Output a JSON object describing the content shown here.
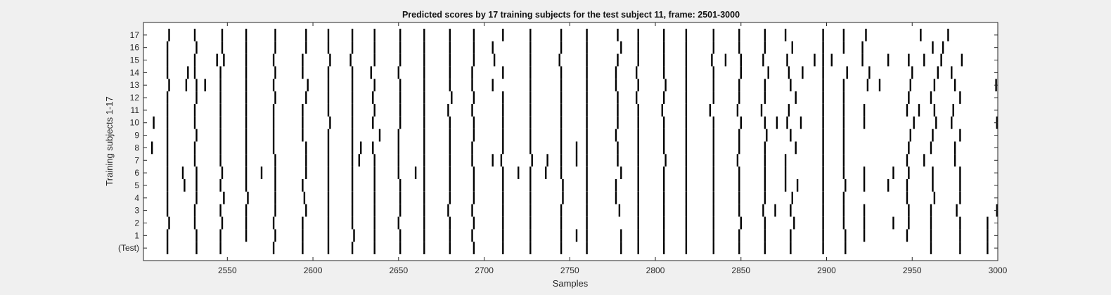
{
  "chart_data": {
    "type": "raster",
    "title": "Predicted scores by 17 training subjects for the test subject 11, frame: 2501-3000",
    "xlabel": "Samples",
    "ylabel": "Training subjects 1-17",
    "xlim": [
      2501,
      3000
    ],
    "x_ticks": [
      2550,
      2600,
      2650,
      2700,
      2750,
      2800,
      2850,
      2900,
      2950,
      3000
    ],
    "y_tick_labels": [
      "(Test)",
      "1",
      "2",
      "3",
      "4",
      "5",
      "6",
      "7",
      "8",
      "9",
      "10",
      "11",
      "12",
      "13",
      "14",
      "15",
      "16",
      "17"
    ],
    "grid": false,
    "rows": [
      {
        "label": "(Test)",
        "events": [
          2515,
          2532,
          2546,
          2577,
          2594,
          2609,
          2623,
          2636,
          2651,
          2665,
          2680,
          2694,
          2711,
          2727,
          2745,
          2760,
          2780,
          2790,
          2805,
          2818,
          2834,
          2849,
          2864,
          2879,
          2898,
          2911,
          2961,
          2978,
          2994
        ]
      },
      {
        "label": "1",
        "events": [
          2515,
          2532,
          2546,
          2561,
          2578,
          2594,
          2609,
          2624,
          2636,
          2651,
          2665,
          2680,
          2693,
          2711,
          2727,
          2745,
          2754,
          2760,
          2780,
          2790,
          2805,
          2818,
          2834,
          2849,
          2864,
          2879,
          2898,
          2911,
          2922,
          2947,
          2961,
          2978,
          2994
        ]
      },
      {
        "label": "2",
        "events": [
          2516,
          2531,
          2547,
          2561,
          2577,
          2594,
          2609,
          2623,
          2636,
          2650,
          2665,
          2680,
          2694,
          2711,
          2727,
          2745,
          2760,
          2790,
          2805,
          2818,
          2834,
          2850,
          2864,
          2881,
          2898,
          2910,
          2922,
          2939,
          2948,
          2961,
          2978,
          2994
        ]
      },
      {
        "label": "3",
        "events": [
          2515,
          2531,
          2546,
          2561,
          2578,
          2596,
          2609,
          2623,
          2636,
          2651,
          2665,
          2679,
          2693,
          2711,
          2727,
          2745,
          2760,
          2779,
          2790,
          2805,
          2818,
          2834,
          2849,
          2863,
          2870,
          2879,
          2898,
          2910,
          2922,
          2948,
          2961,
          2976,
          3000
        ]
      },
      {
        "label": "4",
        "events": [
          2515,
          2532,
          2548,
          2562,
          2578,
          2595,
          2609,
          2623,
          2636,
          2651,
          2665,
          2680,
          2694,
          2711,
          2727,
          2746,
          2760,
          2777,
          2790,
          2805,
          2818,
          2834,
          2849,
          2864,
          2880,
          2898,
          2910,
          2947,
          2963,
          2978
        ]
      },
      {
        "label": "5",
        "events": [
          2515,
          2525,
          2532,
          2546,
          2561,
          2578,
          2594,
          2609,
          2623,
          2636,
          2651,
          2665,
          2680,
          2694,
          2711,
          2727,
          2746,
          2760,
          2777,
          2790,
          2805,
          2818,
          2834,
          2849,
          2864,
          2876,
          2883,
          2898,
          2911,
          2922,
          2936,
          2947,
          2962,
          2978
        ]
      },
      {
        "label": "6",
        "events": [
          2515,
          2524,
          2532,
          2547,
          2561,
          2570,
          2578,
          2596,
          2609,
          2623,
          2636,
          2650,
          2660,
          2665,
          2680,
          2694,
          2711,
          2720,
          2727,
          2736,
          2745,
          2760,
          2780,
          2790,
          2805,
          2818,
          2834,
          2849,
          2864,
          2876,
          2898,
          2910,
          2922,
          2939,
          2948,
          2962,
          2978
        ]
      },
      {
        "label": "7",
        "events": [
          2515,
          2531,
          2546,
          2561,
          2578,
          2596,
          2609,
          2623,
          2627,
          2636,
          2650,
          2665,
          2680,
          2693,
          2705,
          2710,
          2728,
          2737,
          2745,
          2754,
          2760,
          2778,
          2790,
          2806,
          2818,
          2834,
          2848,
          2864,
          2876,
          2898,
          2910,
          2947,
          2957,
          2975
        ]
      },
      {
        "label": "8",
        "events": [
          2506,
          2515,
          2531,
          2546,
          2561,
          2577,
          2596,
          2609,
          2623,
          2628,
          2635,
          2650,
          2665,
          2680,
          2693,
          2711,
          2727,
          2745,
          2754,
          2760,
          2778,
          2790,
          2805,
          2818,
          2834,
          2849,
          2864,
          2882,
          2898,
          2910,
          2948,
          2961,
          2975
        ]
      },
      {
        "label": "9",
        "events": [
          2515,
          2532,
          2546,
          2561,
          2577,
          2594,
          2609,
          2623,
          2639,
          2650,
          2665,
          2680,
          2694,
          2711,
          2727,
          2745,
          2760,
          2777,
          2790,
          2805,
          2818,
          2834,
          2849,
          2865,
          2879,
          2898,
          2910,
          2949,
          2962,
          2978
        ]
      },
      {
        "label": "10",
        "events": [
          2507,
          2515,
          2531,
          2546,
          2561,
          2577,
          2594,
          2610,
          2623,
          2635,
          2651,
          2665,
          2680,
          2694,
          2711,
          2727,
          2745,
          2760,
          2778,
          2790,
          2805,
          2818,
          2834,
          2850,
          2864,
          2871,
          2877,
          2885,
          2898,
          2910,
          2922,
          2951,
          2964,
          2973,
          3000
        ]
      },
      {
        "label": "11",
        "events": [
          2515,
          2531,
          2546,
          2561,
          2577,
          2594,
          2609,
          2623,
          2636,
          2651,
          2665,
          2679,
          2693,
          2711,
          2727,
          2745,
          2760,
          2778,
          2790,
          2804,
          2818,
          2832,
          2848,
          2862,
          2878,
          2898,
          2910,
          2922,
          2947,
          2954,
          2963,
          2974
        ]
      },
      {
        "label": "12",
        "events": [
          2515,
          2532,
          2546,
          2561,
          2578,
          2596,
          2609,
          2623,
          2635,
          2651,
          2665,
          2681,
          2694,
          2711,
          2727,
          2745,
          2760,
          2778,
          2789,
          2805,
          2818,
          2834,
          2849,
          2864,
          2882,
          2898,
          2910,
          2948,
          2961,
          2978
        ]
      },
      {
        "label": "13",
        "events": [
          2516,
          2526,
          2532,
          2537,
          2546,
          2561,
          2577,
          2597,
          2609,
          2623,
          2636,
          2651,
          2665,
          2680,
          2693,
          2705,
          2727,
          2745,
          2760,
          2777,
          2790,
          2806,
          2818,
          2834,
          2849,
          2864,
          2879,
          2898,
          2910,
          2924,
          2931,
          2949,
          2963,
          2975,
          2999
        ]
      },
      {
        "label": "14",
        "events": [
          2515,
          2527,
          2531,
          2546,
          2561,
          2578,
          2594,
          2609,
          2623,
          2634,
          2650,
          2665,
          2680,
          2693,
          2711,
          2727,
          2745,
          2760,
          2777,
          2789,
          2805,
          2818,
          2834,
          2850,
          2866,
          2878,
          2886,
          2898,
          2912,
          2925,
          2950,
          2965,
          2973
        ]
      },
      {
        "label": "15",
        "events": [
          2515,
          2531,
          2544,
          2548,
          2561,
          2577,
          2594,
          2610,
          2622,
          2636,
          2651,
          2665,
          2680,
          2694,
          2706,
          2727,
          2744,
          2760,
          2778,
          2790,
          2805,
          2818,
          2833,
          2841,
          2850,
          2863,
          2877,
          2893,
          2898,
          2903,
          2921,
          2936,
          2948,
          2957,
          2967,
          2979
        ]
      },
      {
        "label": "16",
        "events": [
          2515,
          2532,
          2547,
          2561,
          2578,
          2596,
          2609,
          2623,
          2636,
          2651,
          2665,
          2680,
          2694,
          2705,
          2727,
          2745,
          2760,
          2780,
          2790,
          2805,
          2818,
          2834,
          2849,
          2864,
          2880,
          2898,
          2910,
          2921,
          2962,
          2968
        ]
      },
      {
        "label": "17",
        "events": [
          2516,
          2531,
          2547,
          2561,
          2578,
          2596,
          2609,
          2623,
          2636,
          2651,
          2665,
          2680,
          2694,
          2711,
          2727,
          2745,
          2760,
          2778,
          2790,
          2805,
          2818,
          2834,
          2849,
          2864,
          2876,
          2898,
          2910,
          2923,
          2955,
          2971
        ]
      }
    ]
  }
}
